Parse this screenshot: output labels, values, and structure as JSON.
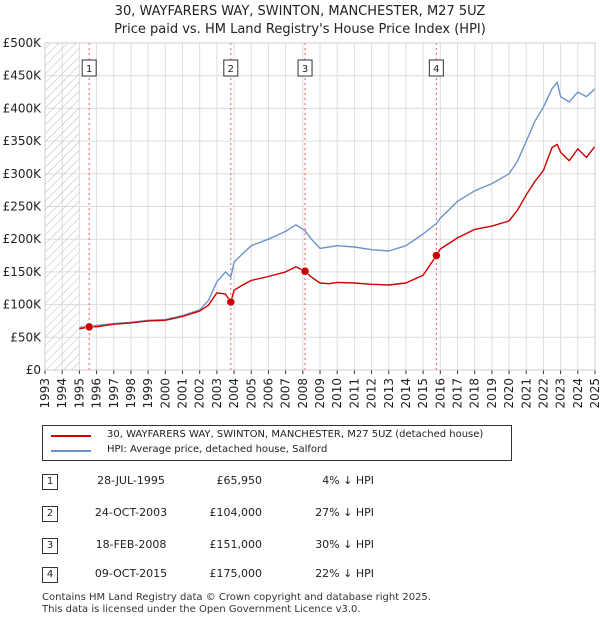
{
  "title_line1": "30, WAYFARERS WAY, SWINTON, MANCHESTER, M27 5UZ",
  "title_line2": "Price paid vs. HM Land Registry's House Price Index (HPI)",
  "colors": {
    "property": "#cc0000",
    "hpi": "#6b93cc",
    "grid": "#dddddd",
    "vline": "#e06060"
  },
  "legend": {
    "property_label": "30, WAYFARERS WAY, SWINTON, MANCHESTER, M27 5UZ (detached house)",
    "hpi_label": "HPI: Average price, detached house, Salford"
  },
  "sales": [
    {
      "num": "1",
      "date": "28-JUL-1995",
      "price": "£65,950",
      "hpi_delta": "4% ↓ HPI"
    },
    {
      "num": "2",
      "date": "24-OCT-2003",
      "price": "£104,000",
      "hpi_delta": "27% ↓ HPI"
    },
    {
      "num": "3",
      "date": "18-FEB-2008",
      "price": "£151,000",
      "hpi_delta": "30% ↓ HPI"
    },
    {
      "num": "4",
      "date": "09-OCT-2015",
      "price": "£175,000",
      "hpi_delta": "22% ↓ HPI"
    }
  ],
  "footer": {
    "line1": "Contains HM Land Registry data © Crown copyright and database right 2025.",
    "line2": "This data is licensed under the Open Government Licence v3.0."
  },
  "chart_data": {
    "type": "line",
    "title": "30, WAYFARERS WAY, SWINTON, MANCHESTER, M27 5UZ — Price paid vs. HM Land Registry's House Price Index (HPI)",
    "xlabel": "",
    "ylabel": "",
    "xlim": [
      1993,
      2025
    ],
    "ylim": [
      0,
      500000
    ],
    "x_ticks": [
      "1993",
      "1994",
      "1995",
      "1996",
      "1997",
      "1998",
      "1999",
      "2000",
      "2001",
      "2002",
      "2003",
      "2004",
      "2005",
      "2006",
      "2007",
      "2008",
      "2009",
      "2010",
      "2011",
      "2012",
      "2013",
      "2014",
      "2015",
      "2016",
      "2017",
      "2018",
      "2019",
      "2020",
      "2021",
      "2022",
      "2023",
      "2024",
      "2025"
    ],
    "y_ticks": [
      {
        "value": 0,
        "label": "£0"
      },
      {
        "value": 50000,
        "label": "£50K"
      },
      {
        "value": 100000,
        "label": "£100K"
      },
      {
        "value": 150000,
        "label": "£150K"
      },
      {
        "value": 200000,
        "label": "£200K"
      },
      {
        "value": 250000,
        "label": "£250K"
      },
      {
        "value": 300000,
        "label": "£300K"
      },
      {
        "value": 350000,
        "label": "£350K"
      },
      {
        "value": 400000,
        "label": "£400K"
      },
      {
        "value": 450000,
        "label": "£450K"
      },
      {
        "value": 500000,
        "label": "£500K"
      }
    ],
    "hatched_range": [
      1993,
      1995.0
    ],
    "series": [
      {
        "name": "30, WAYFARERS WAY, SWINTON, MANCHESTER, M27 5UZ (detached house)",
        "color": "#cc0000",
        "x": [
          1995.0,
          1995.57,
          1996.0,
          1997.0,
          1998.0,
          1999.0,
          2000.0,
          2001.0,
          2002.0,
          2002.5,
          2003.0,
          2003.5,
          2003.81,
          2004.0,
          2004.5,
          2005.0,
          2006.0,
          2007.0,
          2007.6,
          2008.13,
          2008.5,
          2009.0,
          2009.5,
          2010.0,
          2011.0,
          2012.0,
          2013.0,
          2014.0,
          2015.0,
          2015.77,
          2016.0,
          2017.0,
          2018.0,
          2019.0,
          2020.0,
          2020.5,
          2021.0,
          2021.5,
          2022.0,
          2022.5,
          2022.8,
          2023.0,
          2023.5,
          2024.0,
          2024.5,
          2025.0
        ],
        "values": [
          63000,
          65950,
          66000,
          70000,
          72000,
          75000,
          76000,
          82000,
          90000,
          99000,
          118000,
          116000,
          104000,
          122000,
          130000,
          137000,
          143000,
          150000,
          158000,
          151000,
          142000,
          133000,
          132000,
          134000,
          133000,
          131000,
          130000,
          133000,
          145000,
          175000,
          185000,
          202000,
          215000,
          220000,
          228000,
          245000,
          268000,
          288000,
          305000,
          340000,
          345000,
          333000,
          320000,
          338000,
          325000,
          342000
        ]
      },
      {
        "name": "HPI: Average price, detached house, Salford",
        "color": "#6b93cc",
        "x": [
          1995.0,
          1995.57,
          1996.0,
          1997.0,
          1998.0,
          1999.0,
          2000.0,
          2001.0,
          2002.0,
          2002.5,
          2003.0,
          2003.5,
          2003.81,
          2004.0,
          2004.5,
          2005.0,
          2006.0,
          2007.0,
          2007.6,
          2008.13,
          2008.5,
          2009.0,
          2009.5,
          2010.0,
          2011.0,
          2012.0,
          2013.0,
          2014.0,
          2015.0,
          2015.77,
          2016.0,
          2017.0,
          2018.0,
          2019.0,
          2020.0,
          2020.5,
          2021.0,
          2021.5,
          2022.0,
          2022.5,
          2022.8,
          2023.0,
          2023.5,
          2024.0,
          2024.5,
          2025.0
        ],
        "values": [
          65000,
          67000,
          68000,
          71000,
          73000,
          76000,
          77000,
          83000,
          92000,
          106000,
          135000,
          150000,
          142000,
          165000,
          178000,
          190000,
          200000,
          212000,
          222000,
          213000,
          200000,
          186000,
          188000,
          190000,
          188000,
          184000,
          182000,
          190000,
          208000,
          224000,
          232000,
          258000,
          274000,
          285000,
          300000,
          320000,
          350000,
          380000,
          402000,
          430000,
          440000,
          418000,
          410000,
          425000,
          418000,
          430000
        ]
      }
    ],
    "sales_markers": [
      {
        "label": "1",
        "x": 1995.57,
        "value": 65950
      },
      {
        "label": "2",
        "x": 2003.81,
        "value": 104000
      },
      {
        "label": "3",
        "x": 2008.13,
        "value": 151000
      },
      {
        "label": "4",
        "x": 2015.77,
        "value": 175000
      }
    ]
  }
}
